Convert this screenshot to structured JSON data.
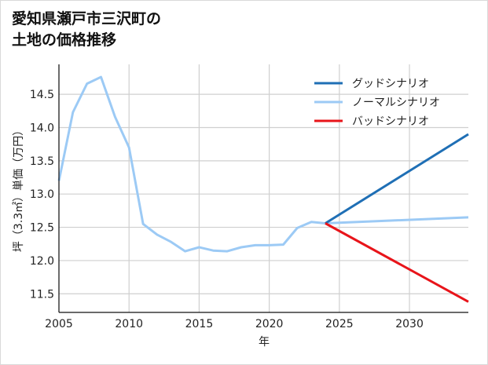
{
  "title_lines": [
    "愛知県瀬戸市三沢町の",
    "土地の価格推移"
  ],
  "chart_data": {
    "type": "line",
    "title": "愛知県瀬戸市三沢町の土地の価格推移",
    "xlabel": "年",
    "ylabel": "坪（3.3㎡）単価（万円）",
    "xlim": [
      2005,
      2034.2
    ],
    "ylim": [
      11.22,
      14.95
    ],
    "grid": true,
    "legend_position": "upper right",
    "x_ticks": [
      2005,
      2010,
      2015,
      2020,
      2025,
      2030
    ],
    "y_ticks": [
      11.5,
      12.0,
      12.5,
      13.0,
      13.5,
      14.0,
      14.5
    ],
    "x_tick_labels": [
      "2005",
      "2010",
      "2015",
      "2020",
      "2025",
      "2030"
    ],
    "y_tick_labels": [
      "11.5",
      "12.0",
      "12.5",
      "13.0",
      "13.5",
      "14.0",
      "14.5"
    ],
    "series": [
      {
        "name": "グッドシナリオ",
        "color": "#1f6fb5",
        "x": [
          2024,
          2034.2
        ],
        "values": [
          12.56,
          13.9
        ]
      },
      {
        "name": "ノーマルシナリオ",
        "color": "#9ccaf5",
        "x": [
          2005,
          2006,
          2007,
          2008,
          2009,
          2010,
          2011,
          2012,
          2013,
          2014,
          2015,
          2016,
          2017,
          2018,
          2019,
          2020,
          2021,
          2022,
          2023,
          2024,
          2034.2
        ],
        "values": [
          13.2,
          14.23,
          14.66,
          14.76,
          14.16,
          13.7,
          12.55,
          12.39,
          12.28,
          12.14,
          12.2,
          12.15,
          12.14,
          12.2,
          12.23,
          12.23,
          12.24,
          12.49,
          12.58,
          12.56,
          12.65
        ]
      },
      {
        "name": "バッドシナリオ",
        "color": "#e8141a",
        "x": [
          2024,
          2034.2
        ],
        "values": [
          12.56,
          11.38
        ]
      }
    ]
  }
}
